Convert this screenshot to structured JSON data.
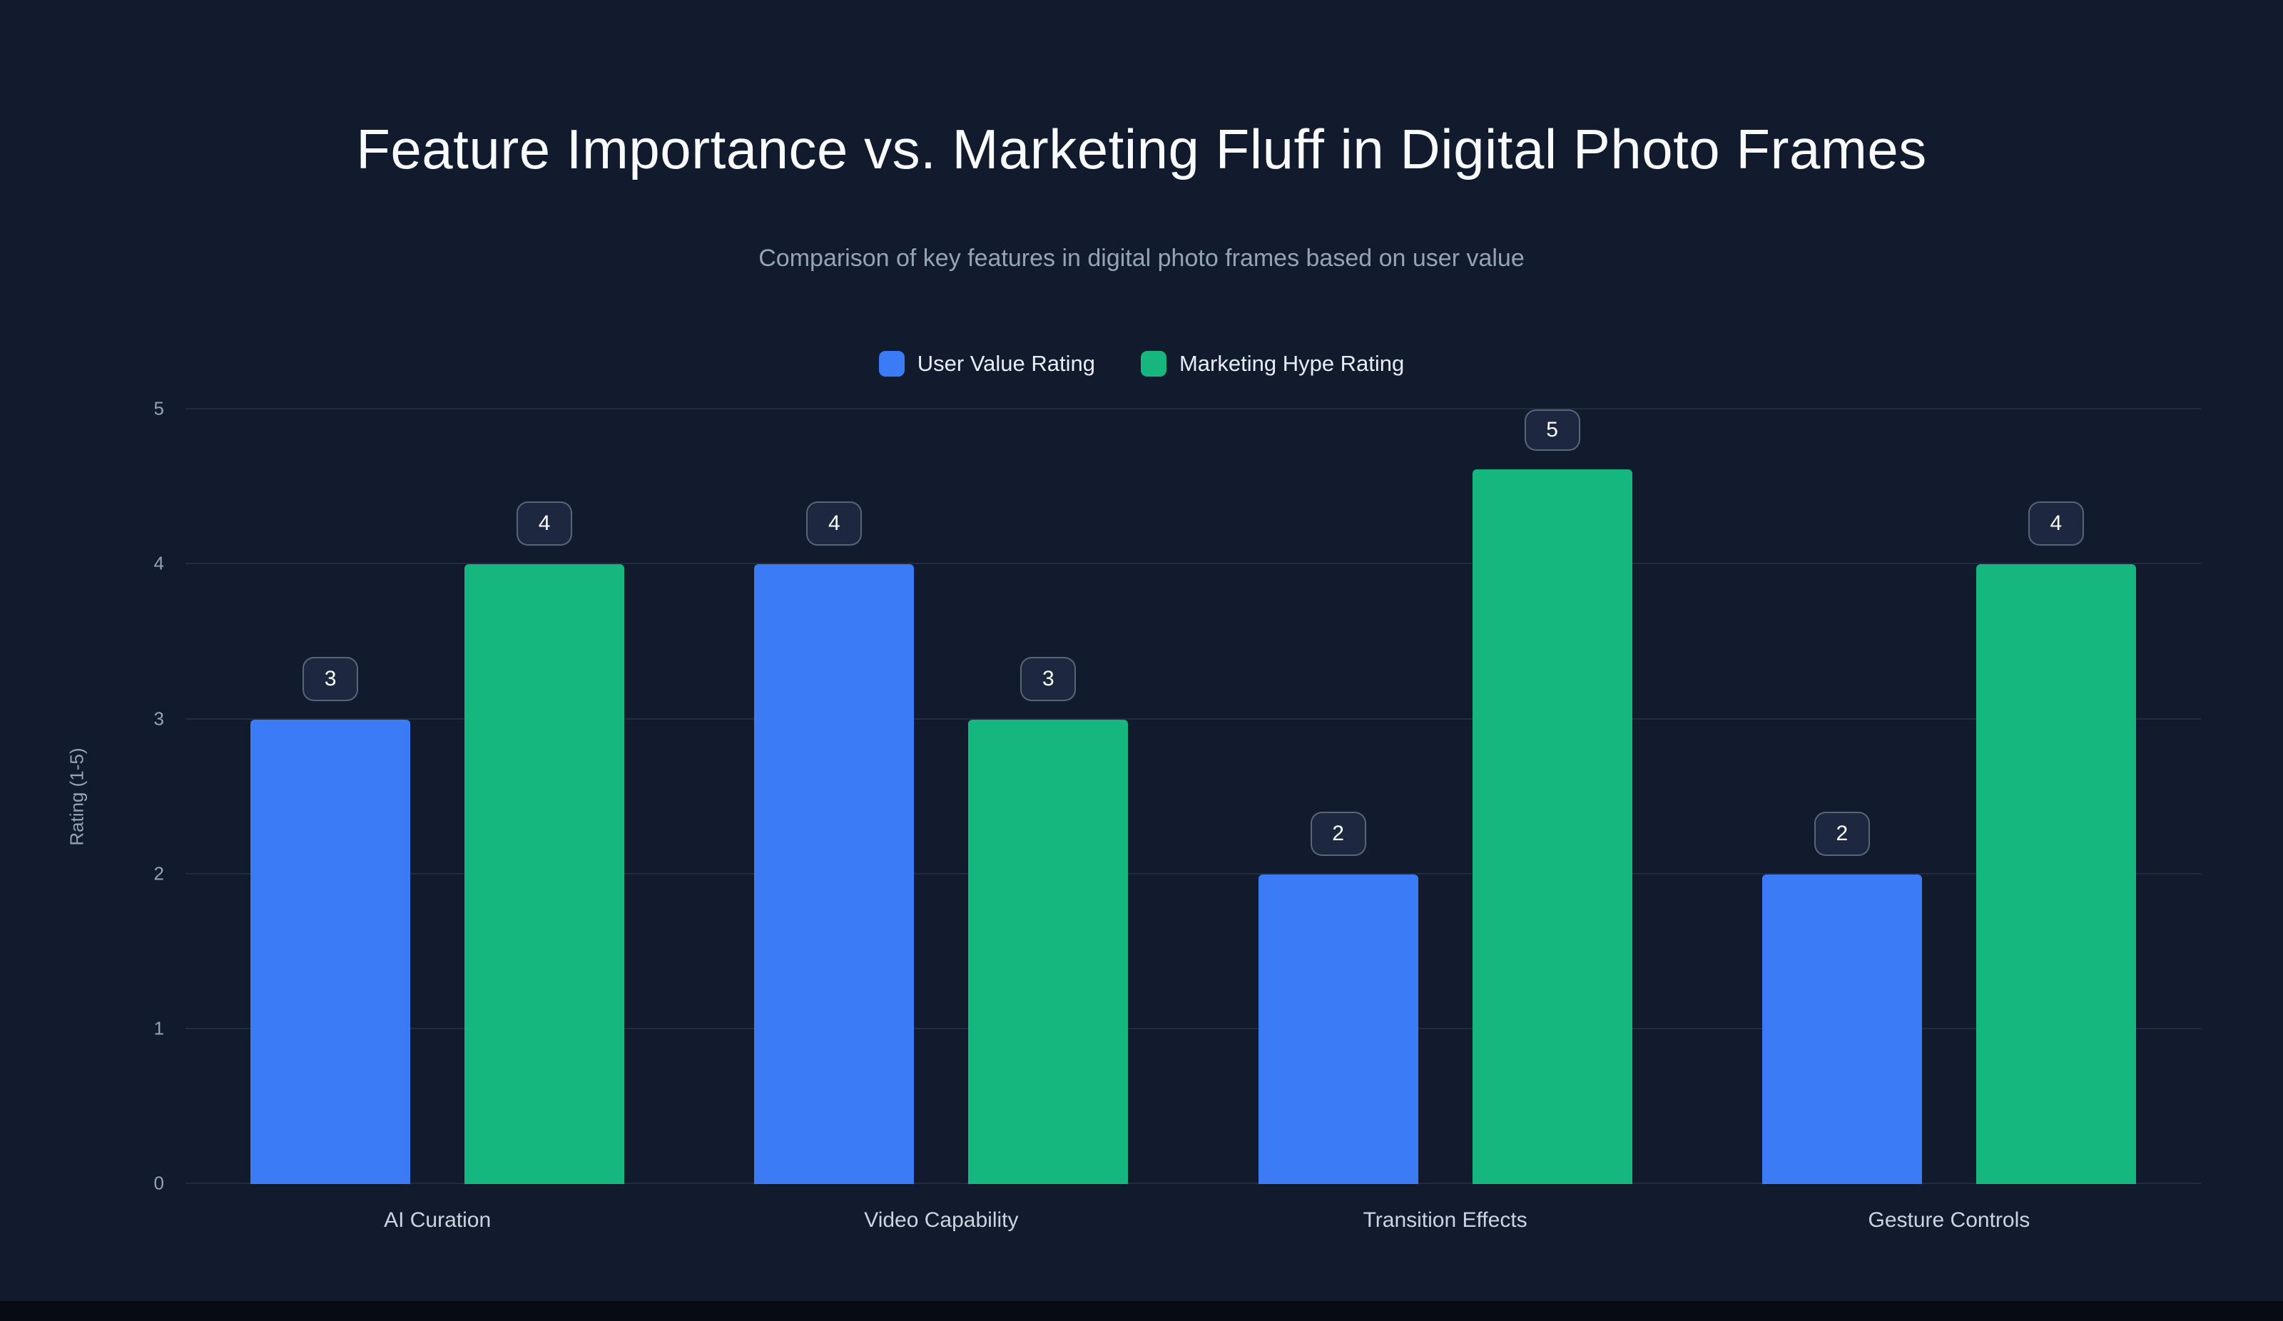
{
  "page": {
    "background": "#121b2e"
  },
  "chart_data": {
    "type": "bar",
    "title": "Feature Importance vs. Marketing Fluff in Digital Photo Frames",
    "subtitle": "Comparison of key features in digital photo frames based on user value",
    "categories": [
      "AI Curation",
      "Video Capability",
      "Transition Effects",
      "Gesture Controls"
    ],
    "series": [
      {
        "name": "User Value Rating",
        "color": "#3b7cf6",
        "values": [
          3,
          4,
          2,
          2
        ]
      },
      {
        "name": "Marketing Hype Rating",
        "color": "#15b77e",
        "values": [
          4,
          3,
          5,
          4
        ]
      }
    ],
    "xlabel": "",
    "ylabel": "Rating (1-5)",
    "ylim": [
      0,
      5
    ],
    "yticks": [
      0,
      1,
      2,
      3,
      4,
      5
    ],
    "grid": true,
    "legend_position": "top",
    "value_labels": true,
    "colors": {
      "background": "#121b2e",
      "title": "#f8fafc",
      "subtitle": "#94a3b8",
      "gridline": "rgba(148,163,184,0.13)",
      "tick_label": "#94a3b8",
      "badge_background": "#1d2840",
      "badge_border": "rgba(203,213,225,0.35)"
    }
  }
}
